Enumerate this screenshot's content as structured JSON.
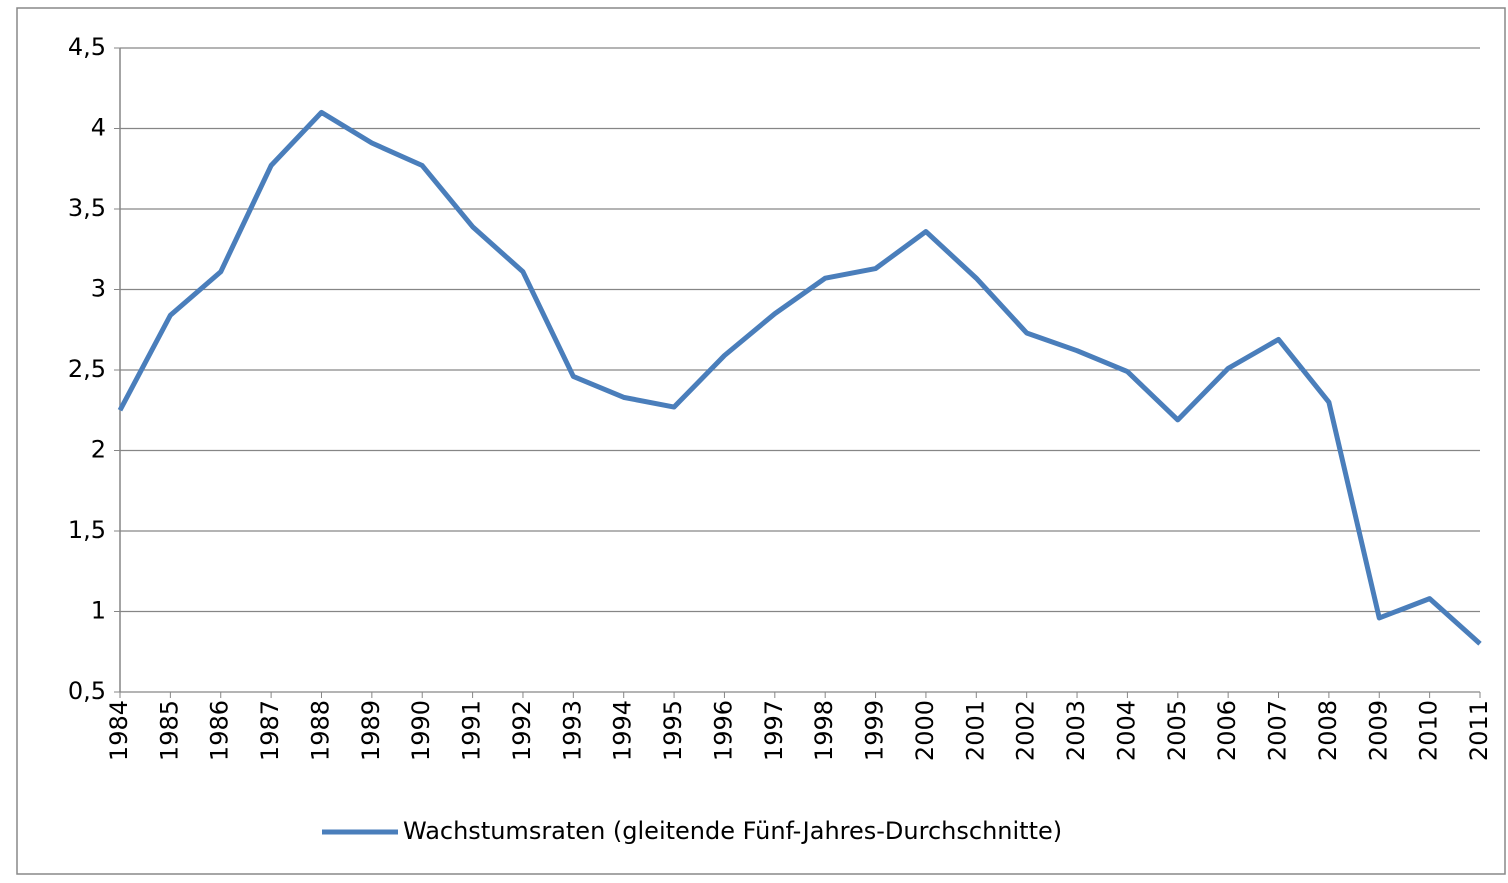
{
  "chart_data": {
    "type": "line",
    "categories": [
      "1984",
      "1985",
      "1986",
      "1987",
      "1988",
      "1989",
      "1990",
      "1991",
      "1992",
      "1993",
      "1994",
      "1995",
      "1996",
      "1997",
      "1998",
      "1999",
      "2000",
      "2001",
      "2002",
      "2003",
      "2004",
      "2005",
      "2006",
      "2007",
      "2008",
      "2009",
      "2010",
      "2011"
    ],
    "series": [
      {
        "name": "Wachstumsraten (gleitende Fünf-Jahres-Durchschnitte)",
        "color": "#4a7ebb",
        "values": [
          2.25,
          2.84,
          3.11,
          3.77,
          4.1,
          3.91,
          3.77,
          3.39,
          3.11,
          2.46,
          2.33,
          2.27,
          2.59,
          2.85,
          3.07,
          3.13,
          3.36,
          3.07,
          2.73,
          2.62,
          2.49,
          2.19,
          2.51,
          2.69,
          2.3,
          0.96,
          1.08,
          0.8
        ]
      }
    ],
    "ylim": [
      0.5,
      4.5
    ],
    "yticks": [
      {
        "value": 0.5,
        "label": "0,5"
      },
      1,
      {
        "value": 1.5,
        "label": "1,5"
      },
      2,
      {
        "value": 2.5,
        "label": "2,5"
      },
      3,
      {
        "value": 3.5,
        "label": "3,5"
      },
      4,
      {
        "value": 4.5,
        "label": "4,5"
      }
    ],
    "grid": true,
    "legend": "bottom"
  }
}
